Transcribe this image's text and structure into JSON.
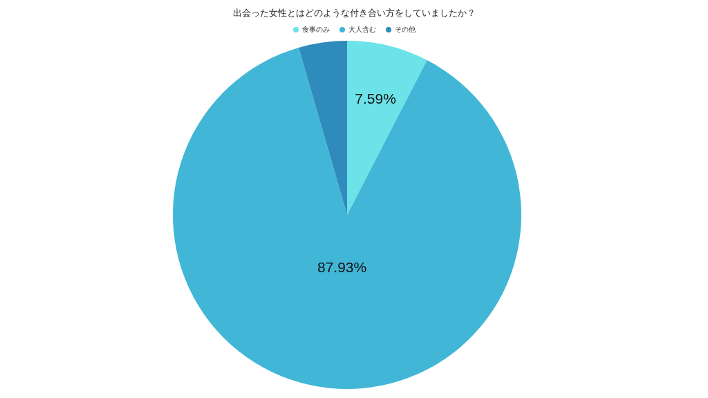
{
  "chart_data": {
    "type": "pie",
    "title": "出会った女性とはどのような付き合い方をしていましたか？",
    "categories": [
      "食事のみ",
      "大人含む",
      "その他"
    ],
    "values": [
      7.59,
      87.93,
      4.48
    ],
    "colors": [
      "#6be3e8",
      "#42b6d6",
      "#2e8bbb"
    ],
    "value_labels": [
      "7.59%",
      "87.93%",
      null
    ],
    "legend": "top"
  }
}
